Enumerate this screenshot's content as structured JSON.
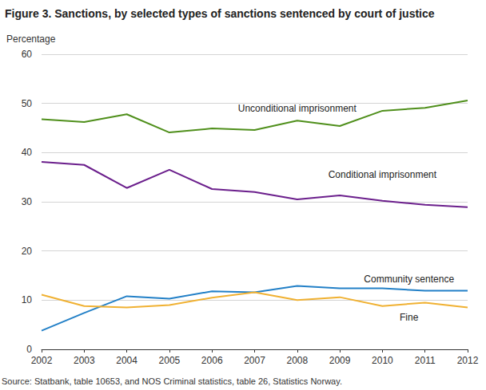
{
  "chart_data": {
    "type": "line",
    "title": "Figure 3. Sanctions, by selected types of sanctions sentenced by court of justice",
    "ylabel": "Percentage",
    "source": "Source: Statbank, table 10653, and NOS Criminal statistics, table 26, Statistics Norway.",
    "x": [
      2002,
      2003,
      2004,
      2005,
      2006,
      2007,
      2008,
      2009,
      2010,
      2011,
      2012
    ],
    "series": [
      {
        "name": "Unconditional imprisonment",
        "color": "#4f8f1b",
        "values": [
          46.8,
          46.2,
          47.8,
          44.1,
          44.9,
          44.6,
          46.5,
          45.4,
          48.5,
          49.1,
          50.6
        ]
      },
      {
        "name": "Conditional imprisonment",
        "color": "#6b1f8c",
        "values": [
          38.1,
          37.5,
          32.8,
          36.5,
          32.6,
          32.0,
          30.5,
          31.3,
          30.2,
          29.4,
          28.9
        ]
      },
      {
        "name": "Community sentence",
        "color": "#2380c7",
        "values": [
          3.8,
          7.4,
          10.8,
          10.3,
          11.8,
          11.6,
          12.9,
          12.4,
          12.4,
          11.9,
          11.9
        ]
      },
      {
        "name": "Fine",
        "color": "#f0b132",
        "values": [
          11.1,
          8.8,
          8.5,
          9.0,
          10.5,
          11.6,
          10.0,
          10.6,
          8.8,
          9.5,
          8.5
        ]
      }
    ],
    "xlim": [
      2002,
      2012
    ],
    "xticks": [
      2002,
      2003,
      2004,
      2005,
      2006,
      2007,
      2008,
      2009,
      2010,
      2011,
      2012
    ],
    "ylim": [
      0,
      60
    ],
    "yticks": [
      0,
      10,
      20,
      30,
      40,
      50,
      60
    ],
    "grid": true
  }
}
